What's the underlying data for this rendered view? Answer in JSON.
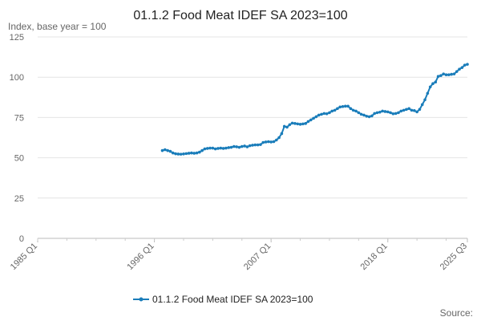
{
  "chart_data": {
    "type": "line",
    "title": "01.1.2 Food Meat IDEF SA 2023=100",
    "y_label": "Index, base year = 100",
    "source": "Source:",
    "x": [
      1996.75,
      1997,
      1997.25,
      1997.5,
      1997.75,
      1998,
      1998.25,
      1998.5,
      1998.75,
      1999,
      1999.25,
      1999.5,
      1999.75,
      2000,
      2000.25,
      2000.5,
      2000.75,
      2001,
      2001.25,
      2001.5,
      2001.75,
      2002,
      2002.25,
      2002.5,
      2002.75,
      2003,
      2003.25,
      2003.5,
      2003.75,
      2004,
      2004.25,
      2004.5,
      2004.75,
      2005,
      2005.25,
      2005.5,
      2005.75,
      2006,
      2006.25,
      2006.5,
      2006.75,
      2007,
      2007.25,
      2007.5,
      2007.75,
      2008,
      2008.25,
      2008.5,
      2008.75,
      2009,
      2009.25,
      2009.5,
      2009.75,
      2010,
      2010.25,
      2010.5,
      2010.75,
      2011,
      2011.25,
      2011.5,
      2011.75,
      2012,
      2012.25,
      2012.5,
      2012.75,
      2013,
      2013.25,
      2013.5,
      2013.75,
      2014,
      2014.25,
      2014.5,
      2014.75,
      2015,
      2015.25,
      2015.5,
      2015.75,
      2016,
      2016.25,
      2016.5,
      2016.75,
      2017,
      2017.25,
      2017.5,
      2017.75,
      2018,
      2018.25,
      2018.5,
      2018.75,
      2019,
      2019.25,
      2019.5,
      2019.75,
      2020,
      2020.25,
      2020.5,
      2020.75,
      2021,
      2021.25,
      2021.5,
      2021.75,
      2022,
      2022.25,
      2022.5,
      2022.75,
      2023,
      2023.25,
      2023.5,
      2023.75,
      2024,
      2024.25,
      2024.5,
      2024.75,
      2025,
      2025.25,
      2025.5
    ],
    "series": [
      {
        "name": "01.1.2 Food Meat IDEF SA 2023=100",
        "color": "#1a7dba",
        "values": [
          54.5,
          55,
          54.5,
          54,
          53,
          52.5,
          52.3,
          52.2,
          52.4,
          52.6,
          52.8,
          53,
          52.8,
          53,
          53.5,
          54.5,
          55.5,
          55.8,
          56,
          56,
          55.5,
          55.8,
          56,
          55.8,
          56,
          56.3,
          56.5,
          57,
          56.8,
          56.5,
          57,
          57.3,
          56.8,
          57.5,
          57.8,
          58,
          58,
          58.2,
          59.5,
          59.8,
          60,
          59.8,
          60,
          61,
          62.5,
          65,
          69.5,
          69,
          70.5,
          71.5,
          71.3,
          71,
          70.8,
          71,
          71.3,
          72.5,
          73.5,
          74.5,
          75.5,
          76.5,
          77,
          77.5,
          77.3,
          78,
          79,
          79.5,
          80.5,
          81.5,
          81.8,
          82,
          82,
          80.5,
          79.5,
          79,
          78,
          77,
          76.5,
          75.8,
          75.5,
          76,
          77.5,
          78,
          78.3,
          79,
          78.7,
          78.5,
          78,
          77.3,
          77.5,
          78,
          79,
          79.5,
          80,
          80.5,
          79.5,
          79.3,
          78.5,
          80,
          83,
          86,
          90,
          94,
          96,
          97,
          100.5,
          101,
          102,
          101.5,
          101.5,
          101.8,
          102,
          103.5,
          105,
          106,
          107.5,
          108
        ]
      }
    ],
    "xlim": [
      1985,
      2025.5
    ],
    "xticks": [
      {
        "value": 1985,
        "label": "1985 Q1"
      },
      {
        "value": 1996,
        "label": "1996 Q1"
      },
      {
        "value": 2007,
        "label": "2007 Q1"
      },
      {
        "value": 2018,
        "label": "2018 Q1"
      },
      {
        "value": 2025.5,
        "label": "2025 Q3"
      }
    ],
    "ylim": [
      0,
      125
    ],
    "yticks": [
      0,
      25,
      50,
      75,
      100,
      125
    ],
    "grid": true,
    "legend": "bottom"
  }
}
